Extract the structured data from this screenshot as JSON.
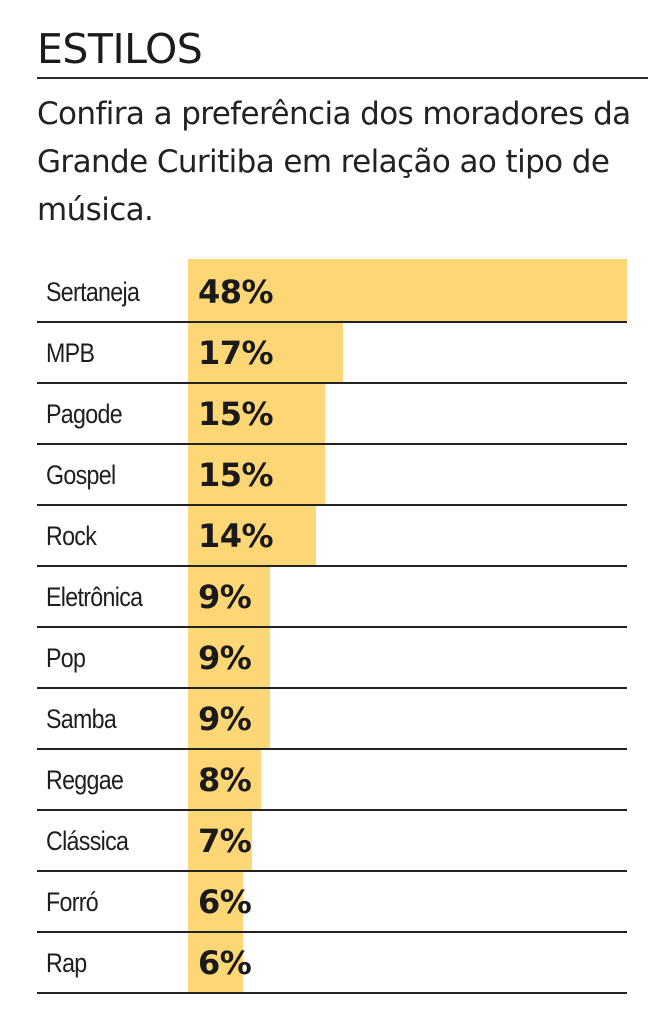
{
  "header": {
    "title": "ESTILOS",
    "subtitle": "Confira a preferência dos moradores da Grande Curitiba em relação ao tipo de música."
  },
  "colors": {
    "bar": "#fdd675",
    "text": "#1b1b1b",
    "rule": "#222222"
  },
  "rows": [
    {
      "label": "Sertaneja",
      "value": "48%"
    },
    {
      "label": "MPB",
      "value": "17%"
    },
    {
      "label": "Pagode",
      "value": "15%"
    },
    {
      "label": "Gospel",
      "value": "15%"
    },
    {
      "label": "Rock",
      "value": "14%"
    },
    {
      "label": "Eletrônica",
      "value": "9%"
    },
    {
      "label": "Pop",
      "value": "9%"
    },
    {
      "label": "Samba",
      "value": "9%"
    },
    {
      "label": "Reggae",
      "value": "8%"
    },
    {
      "label": "Clássica",
      "value": "7%"
    },
    {
      "label": "Forró",
      "value": "6%"
    },
    {
      "label": "Rap",
      "value": "6%"
    }
  ],
  "chart_data": {
    "type": "bar",
    "orientation": "horizontal",
    "title": "ESTILOS",
    "subtitle": "Confira a preferência dos moradores da Grande Curitiba em relação ao tipo de música.",
    "categories": [
      "Sertaneja",
      "MPB",
      "Pagode",
      "Gospel",
      "Rock",
      "Eletrônica",
      "Pop",
      "Samba",
      "Reggae",
      "Clássica",
      "Forró",
      "Rap"
    ],
    "values": [
      48,
      17,
      15,
      15,
      14,
      9,
      9,
      9,
      8,
      7,
      6,
      6
    ],
    "unit": "%",
    "xlabel": "",
    "ylabel": "",
    "xlim": [
      0,
      48
    ],
    "grid": false,
    "legend": null,
    "data_labels": true
  }
}
